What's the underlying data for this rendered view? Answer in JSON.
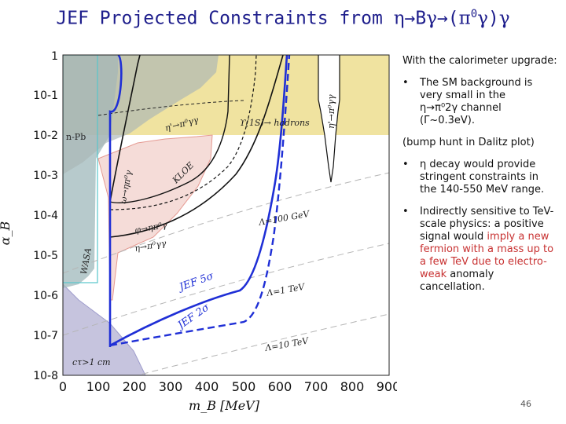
{
  "title": {
    "prefix": "JEF Projected Constraints  from ",
    "eta": "η",
    "arrow1": "→",
    "b": "B",
    "gamma1": "γ",
    "arrow2": "→",
    "lparen": "(",
    "pi": "π",
    "pi_sup": "0",
    "gamma2": "γ",
    "rparen": ")",
    "gamma3": "γ"
  },
  "plot": {
    "xlabel": "m_B [MeV]",
    "ylabel": "α_B",
    "x_ticks": [
      "0",
      "100",
      "200",
      "300",
      "400",
      "500",
      "600",
      "700",
      "800",
      "900"
    ],
    "y_ticks": [
      "1",
      "10-1",
      "10-2",
      "10-3",
      "10-4",
      "10-5",
      "10-6",
      "10-7",
      "10-8"
    ],
    "region_labels": {
      "n_pb": "n-Pb",
      "upsilon": "ϒ(1S)→ hadrons",
      "kloe": "KLOE",
      "wasa": "WASA",
      "eta_prime": "η'→π⁰γγ",
      "eta_prime_2": "η'→π⁰γγ",
      "omega": "ω→ηπ⁰γ",
      "phi": "φ→ηπ⁰γ",
      "eta_pi": "η→π⁰γγ",
      "lambda100": "Λ=100 GeV",
      "lambda1": "Λ=1 TeV",
      "lambda10": "Λ=10 TeV",
      "jef5": "JEF 5σ",
      "jef2": "JEF 2σ",
      "ctau": "cτ>1 cm"
    }
  },
  "notes": {
    "intro": "With the calorimeter upgrade:",
    "b1_dot": "•",
    "b1_line1": "The SM background is very small in the",
    "b1_line2": "η→π⁰2γ channel",
    "b1_line3": "(Γ~0.3eV).",
    "bump": "(bump hunt in Dalitz plot)",
    "b2_dot": "•",
    "b2": "η decay would provide stringent constraints in the 140-550 MeV range.",
    "b3_dot": "•",
    "b3_black": "Indirectly sensitive to TeV-scale physics: a positive signal would",
    "b3_red": "imply a new fermion with a mass  up to a few TeV due to electro-weak",
    "b3_end": "anomaly cancellation."
  },
  "page_number": "46",
  "colors": {
    "title": "#1e1e8c",
    "red_note": "#c83232",
    "jef": "#1f2fd6",
    "yellow_band": "#f0e3a0",
    "gray_region": "#a9b6b6",
    "purple_region": "#c6c4de",
    "pink_region": "#f5dcd8"
  }
}
